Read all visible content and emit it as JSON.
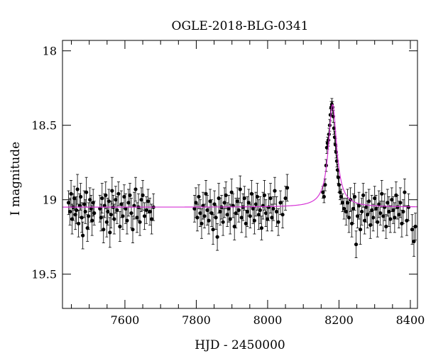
{
  "chart_data": {
    "type": "scatter",
    "title": "OGLE-2018-BLG-0341",
    "xlabel": "HJD - 2450000",
    "ylabel": "I magnitude",
    "xlim": [
      7425,
      8420
    ],
    "ylim": [
      19.73,
      17.93
    ],
    "y_inverted": true,
    "x_ticks": [
      7600,
      7800,
      8000,
      8200,
      8400
    ],
    "x_tick_labels": [
      "7600",
      "7800",
      "8000",
      "8200",
      "8400"
    ],
    "y_ticks": [
      18,
      18.5,
      19,
      19.5
    ],
    "y_tick_labels": [
      "18",
      "18.5",
      "19",
      "19.5"
    ],
    "grid": false,
    "series": [
      {
        "kind": "points_with_errorbars",
        "color": "#000000",
        "points": [
          [
            7442,
            19.02,
            0.08
          ],
          [
            7446,
            19.08,
            0.09
          ],
          [
            7449,
            18.96,
            0.09
          ],
          [
            7452,
            19.13,
            0.1
          ],
          [
            7455,
            19.05,
            0.09
          ],
          [
            7458,
            18.99,
            0.08
          ],
          [
            7461,
            19.1,
            0.1
          ],
          [
            7464,
            19.07,
            0.09
          ],
          [
            7467,
            18.93,
            0.1
          ],
          [
            7470,
            19.16,
            0.09
          ],
          [
            7473,
            19.04,
            0.08
          ],
          [
            7476,
            18.98,
            0.09
          ],
          [
            7479,
            19.12,
            0.1
          ],
          [
            7482,
            19.24,
            0.09
          ],
          [
            7486,
            19.03,
            0.09
          ],
          [
            7489,
            19.08,
            0.08
          ],
          [
            7492,
            18.95,
            0.1
          ],
          [
            7495,
            19.19,
            0.09
          ],
          [
            7498,
            19.11,
            0.09
          ],
          [
            7502,
            19.0,
            0.08
          ],
          [
            7505,
            19.06,
            0.09
          ],
          [
            7508,
            19.14,
            0.1
          ],
          [
            7511,
            19.02,
            0.09
          ],
          [
            7514,
            19.09,
            0.08
          ],
          [
            7530,
            19.06,
            0.09
          ],
          [
            7533,
            19.12,
            0.09
          ],
          [
            7536,
            18.99,
            0.1
          ],
          [
            7540,
            19.2,
            0.09
          ],
          [
            7543,
            19.04,
            0.08
          ],
          [
            7546,
            18.97,
            0.09
          ],
          [
            7549,
            19.15,
            0.1
          ],
          [
            7552,
            19.08,
            0.09
          ],
          [
            7555,
            19.01,
            0.08
          ],
          [
            7558,
            19.22,
            0.1
          ],
          [
            7561,
            19.1,
            0.09
          ],
          [
            7564,
            18.94,
            0.09
          ],
          [
            7567,
            19.05,
            0.08
          ],
          [
            7570,
            19.13,
            0.1
          ],
          [
            7574,
            19.0,
            0.09
          ],
          [
            7578,
            19.07,
            0.09
          ],
          [
            7582,
            18.96,
            0.08
          ],
          [
            7586,
            19.18,
            0.1
          ],
          [
            7590,
            19.03,
            0.09
          ],
          [
            7594,
            19.11,
            0.09
          ],
          [
            7598,
            18.98,
            0.08
          ],
          [
            7602,
            19.06,
            0.1
          ],
          [
            7606,
            19.14,
            0.09
          ],
          [
            7610,
            19.02,
            0.09
          ],
          [
            7614,
            18.97,
            0.08
          ],
          [
            7618,
            19.09,
            0.1
          ],
          [
            7622,
            19.2,
            0.09
          ],
          [
            7626,
            19.04,
            0.09
          ],
          [
            7630,
            18.93,
            0.08
          ],
          [
            7634,
            19.12,
            0.1
          ],
          [
            7638,
            19.05,
            0.09
          ],
          [
            7642,
            19.15,
            0.09
          ],
          [
            7646,
            19.0,
            0.08
          ],
          [
            7650,
            18.97,
            0.1
          ],
          [
            7655,
            19.11,
            0.09
          ],
          [
            7660,
            19.07,
            0.09
          ],
          [
            7665,
            19.01,
            0.08
          ],
          [
            7670,
            19.08,
            0.09
          ],
          [
            7675,
            19.13,
            0.1
          ],
          [
            7680,
            19.05,
            0.09
          ],
          [
            7795,
            19.06,
            0.09
          ],
          [
            7799,
            19.02,
            0.1
          ],
          [
            7803,
            19.12,
            0.09
          ],
          [
            7807,
            18.98,
            0.08
          ],
          [
            7811,
            19.09,
            0.09
          ],
          [
            7815,
            19.16,
            0.1
          ],
          [
            7819,
            19.04,
            0.09
          ],
          [
            7823,
            19.11,
            0.08
          ],
          [
            7827,
            18.96,
            0.09
          ],
          [
            7831,
            19.07,
            0.1
          ],
          [
            7835,
            19.14,
            0.09
          ],
          [
            7839,
            19.01,
            0.08
          ],
          [
            7843,
            19.09,
            0.09
          ],
          [
            7847,
            19.2,
            0.1
          ],
          [
            7851,
            19.03,
            0.09
          ],
          [
            7855,
            19.12,
            0.08
          ],
          [
            7859,
            19.25,
            0.09
          ],
          [
            7863,
            18.99,
            0.1
          ],
          [
            7867,
            19.08,
            0.09
          ],
          [
            7871,
            19.05,
            0.08
          ],
          [
            7875,
            19.15,
            0.09
          ],
          [
            7879,
            19.02,
            0.1
          ],
          [
            7883,
            18.97,
            0.09
          ],
          [
            7887,
            19.1,
            0.08
          ],
          [
            7891,
            19.06,
            0.09
          ],
          [
            7895,
            19.13,
            0.1
          ],
          [
            7899,
            18.95,
            0.09
          ],
          [
            7903,
            19.04,
            0.08
          ],
          [
            7907,
            19.18,
            0.09
          ],
          [
            7911,
            19.09,
            0.1
          ],
          [
            7915,
            19.01,
            0.09
          ],
          [
            7919,
            19.07,
            0.08
          ],
          [
            7923,
            18.93,
            0.09
          ],
          [
            7927,
            19.12,
            0.1
          ],
          [
            7931,
            19.05,
            0.09
          ],
          [
            7935,
            18.99,
            0.08
          ],
          [
            7939,
            19.16,
            0.09
          ],
          [
            7943,
            19.08,
            0.1
          ],
          [
            7947,
            19.02,
            0.09
          ],
          [
            7951,
            19.11,
            0.08
          ],
          [
            7955,
            18.96,
            0.09
          ],
          [
            7959,
            19.06,
            0.1
          ],
          [
            7963,
            19.14,
            0.09
          ],
          [
            7967,
            19.03,
            0.08
          ],
          [
            7971,
            18.98,
            0.09
          ],
          [
            7975,
            19.1,
            0.1
          ],
          [
            7979,
            19.07,
            0.09
          ],
          [
            7983,
            19.19,
            0.08
          ],
          [
            7987,
            19.04,
            0.09
          ],
          [
            7991,
            18.97,
            0.1
          ],
          [
            7995,
            19.09,
            0.09
          ],
          [
            7999,
            19.13,
            0.08
          ],
          [
            8003,
            19.05,
            0.09
          ],
          [
            8008,
            18.99,
            0.1
          ],
          [
            8012,
            19.12,
            0.09
          ],
          [
            8016,
            19.06,
            0.08
          ],
          [
            8020,
            18.94,
            0.09
          ],
          [
            8025,
            19.08,
            0.1
          ],
          [
            8030,
            19.15,
            0.09
          ],
          [
            8036,
            19.02,
            0.08
          ],
          [
            8042,
            19.1,
            0.09
          ],
          [
            8050,
            18.99,
            0.08
          ],
          [
            8055,
            18.92,
            0.09
          ],
          [
            8155,
            18.95,
            0.04
          ],
          [
            8158,
            18.98,
            0.04
          ],
          [
            8161,
            18.9,
            0.04
          ],
          [
            8164,
            18.77,
            0.04
          ],
          [
            8166,
            18.65,
            0.04
          ],
          [
            8168,
            18.62,
            0.04
          ],
          [
            8170,
            18.6,
            0.04
          ],
          [
            8172,
            18.56,
            0.04
          ],
          [
            8174,
            18.5,
            0.04
          ],
          [
            8176,
            18.43,
            0.04
          ],
          [
            8178,
            18.38,
            0.04
          ],
          [
            8180,
            18.36,
            0.04
          ],
          [
            8182,
            18.38,
            0.04
          ],
          [
            8184,
            18.44,
            0.04
          ],
          [
            8186,
            18.52,
            0.04
          ],
          [
            8188,
            18.58,
            0.04
          ],
          [
            8190,
            18.63,
            0.04
          ],
          [
            8192,
            18.68,
            0.04
          ],
          [
            8194,
            18.74,
            0.04
          ],
          [
            8196,
            18.8,
            0.04
          ],
          [
            8198,
            18.85,
            0.04
          ],
          [
            8200,
            18.9,
            0.05
          ],
          [
            8203,
            18.95,
            0.05
          ],
          [
            8206,
            18.98,
            0.05
          ],
          [
            8210,
            19.02,
            0.06
          ],
          [
            8214,
            19.06,
            0.07
          ],
          [
            8220,
            19.08,
            0.09
          ],
          [
            8224,
            19.02,
            0.09
          ],
          [
            8228,
            19.12,
            0.1
          ],
          [
            8232,
            19.0,
            0.08
          ],
          [
            8236,
            19.16,
            0.09
          ],
          [
            8240,
            19.06,
            0.1
          ],
          [
            8244,
            18.98,
            0.09
          ],
          [
            8248,
            19.3,
            0.09
          ],
          [
            8252,
            19.11,
            0.08
          ],
          [
            8256,
            19.04,
            0.09
          ],
          [
            8260,
            19.2,
            0.1
          ],
          [
            8264,
            19.08,
            0.09
          ],
          [
            8268,
            18.97,
            0.08
          ],
          [
            8272,
            19.14,
            0.09
          ],
          [
            8276,
            19.05,
            0.1
          ],
          [
            8280,
            19.1,
            0.09
          ],
          [
            8284,
            19.01,
            0.08
          ],
          [
            8288,
            19.17,
            0.09
          ],
          [
            8292,
            19.07,
            0.1
          ],
          [
            8296,
            19.12,
            0.09
          ],
          [
            8300,
            18.99,
            0.08
          ],
          [
            8304,
            19.06,
            0.09
          ],
          [
            8308,
            19.15,
            0.1
          ],
          [
            8312,
            19.03,
            0.09
          ],
          [
            8316,
            19.09,
            0.08
          ],
          [
            8320,
            18.96,
            0.09
          ],
          [
            8324,
            19.11,
            0.1
          ],
          [
            8328,
            19.05,
            0.09
          ],
          [
            8332,
            19.18,
            0.08
          ],
          [
            8336,
            19.02,
            0.09
          ],
          [
            8340,
            19.08,
            0.1
          ],
          [
            8344,
            19.13,
            0.09
          ],
          [
            8348,
            19.0,
            0.08
          ],
          [
            8352,
            19.07,
            0.09
          ],
          [
            8356,
            19.12,
            0.1
          ],
          [
            8360,
            18.97,
            0.09
          ],
          [
            8364,
            19.05,
            0.08
          ],
          [
            8368,
            19.1,
            0.09
          ],
          [
            8372,
            19.02,
            0.1
          ],
          [
            8376,
            19.16,
            0.09
          ],
          [
            8380,
            19.08,
            0.08
          ],
          [
            8384,
            18.95,
            0.09
          ],
          [
            8390,
            19.14,
            0.1
          ],
          [
            8395,
            19.05,
            0.09
          ],
          [
            8405,
            19.2,
            0.1
          ],
          [
            8410,
            19.28,
            0.1
          ],
          [
            8414,
            19.18,
            0.09
          ]
        ]
      },
      {
        "kind": "model_curve",
        "color": "#d633d6",
        "baseline_mag": 19.05,
        "peak_mag": 18.36,
        "peak_hjd": 8182,
        "width_days": 14
      }
    ]
  }
}
